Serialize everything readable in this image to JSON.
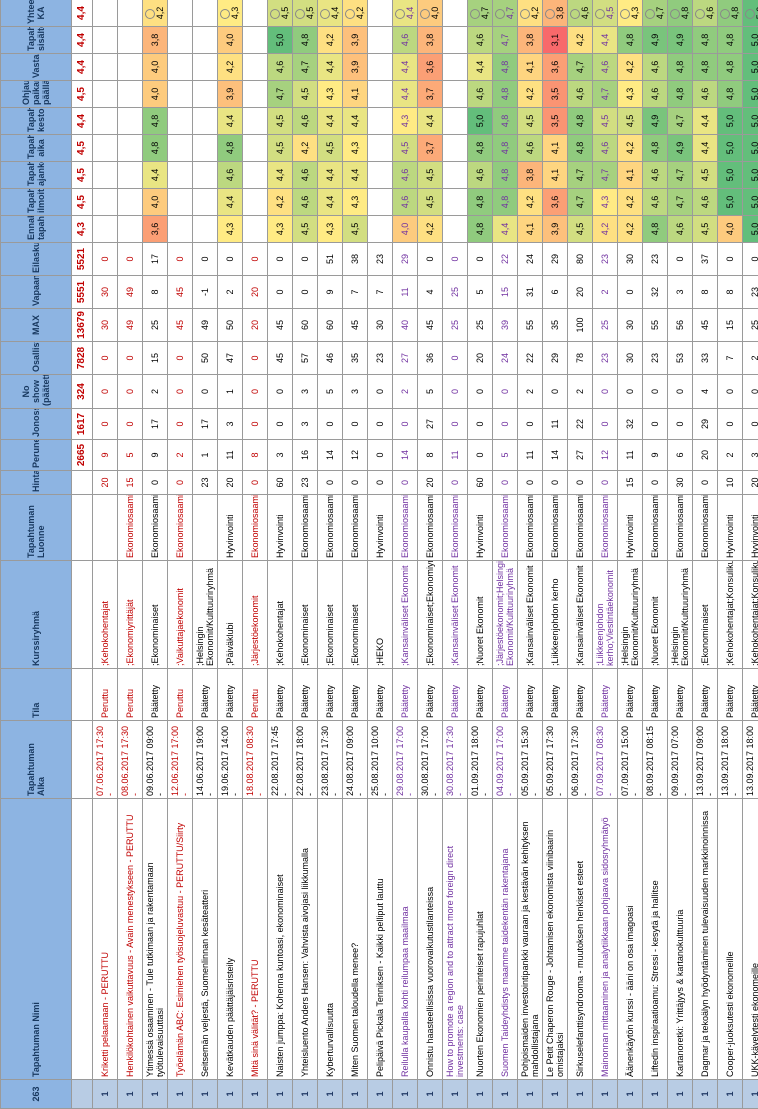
{
  "table": {
    "header": [
      "263",
      "Tapahtuman Nimi",
      "Tapahtuman Alka",
      "Tila",
      "Kurssiryhmä",
      "Tapahtuman Luonne",
      "Hinta",
      "Peruneet",
      "Jonossa",
      "No show (päätetty)",
      "Osallistunut",
      "MAX",
      "Vapaana",
      "Eilaskua",
      "Ennakkotieto tapahtumasta",
      "Tapahtuman ilmoittautuminen",
      "Tapahtuman ajankohta",
      "Tapahtuman aika",
      "Tapahtuman kesto",
      "Ohjaus paikan päällä",
      "Vastaanotto",
      "Tapahtuman sisältö",
      "Yhteensä KA"
    ],
    "totals": [
      null,
      null,
      null,
      null,
      null,
      null,
      null,
      2665,
      1617,
      324,
      7828,
      13679,
      5551,
      5521,
      "4,3",
      "4,5",
      "4,5",
      "4,5",
      "4,4",
      "4,5",
      "4,4",
      "4,4",
      "4,4"
    ],
    "totals_color": "#c00000",
    "rows": [
      {
        "color": "#c00000",
        "cells": [
          1,
          "Kriketti pelaamaan - PERUTTU",
          "07.06.2017 17:30 -",
          "Peruttu",
          ";Kehokohentajat",
          null,
          20,
          9,
          0,
          0,
          0,
          30,
          30,
          0,
          null,
          null,
          null,
          null,
          null,
          null,
          null,
          null,
          null
        ]
      },
      {
        "color": "#c00000",
        "cells": [
          1,
          "Henkilökohtainen vaikuttavuus - Avain menestykseen - PERUTTU",
          "08.06.2017 17:30 -",
          "Peruttu",
          ";Ekonomiyrittäjät",
          "Ekonomiosaaminen",
          15,
          5,
          0,
          0,
          0,
          49,
          49,
          0,
          null,
          null,
          null,
          null,
          null,
          null,
          null,
          null,
          null
        ]
      },
      {
        "cells": [
          1,
          "Ytimessä osaaminen - Tule tutkimaan ja rakentamaan työtulevaisuuttasi",
          "09.06.2017 09:00 -",
          "Päätetty",
          ";Ekonominaiset",
          "Ekonomiosaaminen",
          0,
          9,
          17,
          2,
          15,
          25,
          8,
          17,
          "3,6",
          "4,0",
          "4,4",
          "4,8",
          "4,8",
          "4,0",
          "4,0",
          "3,8",
          "4,2"
        ]
      },
      {
        "color": "#c00000",
        "cells": [
          1,
          "Työelämän ABC: Esimiehen työsuojeluvastuu - PERUTTU/Siirty",
          "12.06.2017 17:00 -",
          "Peruttu",
          ";Vaikuttajaekonomit",
          "Ekonomiosaaminen",
          0,
          2,
          0,
          0,
          0,
          45,
          45,
          0,
          null,
          null,
          null,
          null,
          null,
          null,
          null,
          null,
          null
        ]
      },
      {
        "cells": [
          1,
          "Seitsemän veljestä, Suomenlinnan kesäteatteri",
          "14.06.2017 19:00 -",
          "Päätetty",
          ";Helsingin Ekonomit/Kulttuuriryhmä",
          null,
          23,
          1,
          17,
          0,
          50,
          49,
          -1,
          0,
          null,
          null,
          null,
          null,
          null,
          null,
          null,
          null,
          null
        ]
      },
      {
        "cells": [
          1,
          "Kevätkauden päättäjäisristeily",
          "19.06.2017 14:00 -",
          "Päätetty",
          ";Päiväklubi",
          "Hyvinvointi",
          20,
          11,
          3,
          1,
          47,
          50,
          2,
          0,
          "4,3",
          "4,4",
          "4,6",
          "4,8",
          "4,4",
          "3,9",
          "4,2",
          "4,0",
          "4,3"
        ]
      },
      {
        "color": "#c00000",
        "cells": [
          1,
          "Mitä sinä välität? - PERUTTU",
          "18.08.2017 08:30 -",
          "Peruttu",
          ";Järjestöekonomit",
          "Ekonomiosaaminen",
          0,
          8,
          0,
          0,
          0,
          20,
          20,
          0,
          null,
          null,
          null,
          null,
          null,
          null,
          null,
          null,
          null
        ]
      },
      {
        "cells": [
          1,
          "Naisten jumppa: Kohenna kuntoasi, ekonominaiset",
          "22.08.2017 17:45 -",
          "Päätetty",
          ";Kehokohentajat",
          "Hyvinvointi",
          60,
          3,
          0,
          0,
          45,
          45,
          0,
          0,
          "4,3",
          "4,2",
          "4,4",
          "4,5",
          "4,5",
          "4,7",
          "4,6",
          "5,0",
          "4,5"
        ]
      },
      {
        "cells": [
          1,
          "Yhteisluento Anders Hansen: Vahvista aivojasi liikkumalla",
          "22.08.2017 18:00 -",
          "Päätetty",
          ";Ekonominaiset",
          "Ekonomiosaaminen",
          23,
          16,
          3,
          3,
          57,
          60,
          0,
          0,
          "4,5",
          "4,6",
          "4,6",
          "4,2",
          "4,6",
          "4,5",
          "4,7",
          "4,8",
          "4,5"
        ]
      },
      {
        "cells": [
          1,
          "Kyberturvallisuutta",
          "23.08.2017 17:30 -",
          "Päätetty",
          ";Ekonominaiset",
          "Ekonomiosaaminen",
          0,
          14,
          0,
          5,
          46,
          60,
          9,
          51,
          "4,3",
          "4,4",
          "4,4",
          "4,5",
          "4,4",
          "4,3",
          "4,4",
          "4,2",
          "4,4"
        ]
      },
      {
        "cells": [
          1,
          "Miten Suomen taloudella menee?",
          "24.08.2017 09:00 -",
          "Päätetty",
          ";Ekonominaiset",
          "Ekonomiosaaminen",
          0,
          12,
          0,
          3,
          35,
          45,
          7,
          38,
          "4,5",
          "4,3",
          "4,4",
          "4,3",
          "4,4",
          "4,1",
          "3,9",
          "3,9",
          "4,2"
        ]
      },
      {
        "cells": [
          1,
          "Pelipäivä Pickala Tenniksen - Kaikki pelliput lauttu",
          "25.08.2017 10:00 -",
          "Päätetty",
          ";HEKO",
          "Hyvinvointi",
          0,
          0,
          0,
          0,
          23,
          30,
          7,
          23,
          null,
          null,
          null,
          null,
          null,
          null,
          null,
          null,
          null
        ]
      },
      {
        "color": "#7030a0",
        "cells": [
          1,
          "Reilulla kaupalla kohti reilumpaa maailmaa",
          "29.08.2017 17:00 -",
          "Päätetty",
          ";Kansainväliset Ekonomit",
          "Ekonomiosaaminen",
          0,
          14,
          0,
          2,
          27,
          40,
          11,
          29,
          "4,0",
          "4,6",
          "4,6",
          "4,5",
          "4,3",
          "4,4",
          "4,4",
          "4,6",
          "4,4"
        ]
      },
      {
        "cells": [
          1,
          "Onnistu haasteellisissa vuorovaikutustilanteissa",
          "30.08.2017 17:00 -",
          "Päätetty",
          ";Ekonominaiset;Ekonomiyrittäjät",
          "Ekonomiosaaminen",
          20,
          8,
          27,
          5,
          36,
          45,
          4,
          0,
          "4,2",
          "4,5",
          "4,5",
          "3,7",
          "4,4",
          "3,7",
          "3,6",
          "3,8",
          "4,0"
        ]
      },
      {
        "color": "#7030a0",
        "cells": [
          1,
          "How to promote a region and to attract more foreign direct investments: case",
          "30.08.2017 17:30 -",
          "Päätetty",
          ";Kansainväliset Ekonomit",
          "Ekonomiosaaminen",
          0,
          11,
          0,
          0,
          0,
          25,
          25,
          0,
          null,
          null,
          null,
          null,
          null,
          null,
          null,
          null,
          null
        ]
      },
      {
        "cells": [
          1,
          "Nuorten Ekonomien perinteiset rapujuhlat",
          "01.09.2017 18:00 -",
          "Päätetty",
          ";Nuoret Ekonomit",
          "Hyvinvointi",
          60,
          0,
          0,
          0,
          20,
          25,
          5,
          0,
          "4,8",
          "4,8",
          "4,6",
          "4,8",
          "5,0",
          "4,6",
          "4,4",
          "4,6",
          "4,7"
        ]
      },
      {
        "color": "#7030a0",
        "cells": [
          1,
          "Suomen Taideyhdistys maamme taidekentän rakentajana",
          "04.09.2017 17:00 -",
          "Päätetty",
          ";Järjestöekonomit;Helsingin Ekonomit/Kulttuuriryhmä",
          "Ekonomiosaaminen",
          0,
          5,
          0,
          0,
          24,
          39,
          15,
          22,
          "4,4",
          "4,8",
          "4,8",
          "4,8",
          "4,8",
          "4,8",
          "4,8",
          "4,7",
          "4,7"
        ]
      },
      {
        "cells": [
          1,
          "Pohjoismaiden investointipankki vauraan ja kestävän kehityksen mahdollistajana",
          "05.09.2017 15:30 -",
          "Päätetty",
          ";Kansainväliset Ekonomit",
          "Ekonomiosaaminen",
          0,
          11,
          0,
          2,
          22,
          55,
          31,
          24,
          "4,1",
          "4,2",
          "3,8",
          "4,6",
          "4,5",
          "4,2",
          "4,1",
          "3,8",
          "4,2"
        ]
      },
      {
        "cells": [
          1,
          "Le Petit Chaperon Rouge - Johtamisen ekonomista viinibaarin omistajaksi",
          "05.09.2017 17:30 -",
          "Päätetty",
          ";Liikkeenjohdon kerho",
          "Ekonomiosaaminen",
          0,
          14,
          11,
          0,
          29,
          35,
          6,
          29,
          "3,9",
          "3,6",
          "4,1",
          "4,1",
          "3,5",
          "3,5",
          "3,6",
          "3,1",
          "3,8"
        ]
      },
      {
        "cells": [
          1,
          "Sirkuselefanttisyndrooma - muutoksen henkiset esteet",
          "06.09.2017 17:30 -",
          "Päätetty",
          ";Kansainväliset Ekonomit",
          "Ekonomiosaaminen",
          0,
          27,
          22,
          2,
          78,
          100,
          20,
          80,
          "4,5",
          "4,7",
          "4,7",
          "4,8",
          "4,8",
          "4,6",
          "4,7",
          "4,2",
          "4,6"
        ]
      },
      {
        "color": "#7030a0",
        "cells": [
          1,
          "Mainonnan mittaaminen ja analytiikkaan pohjaava sidosryhmätyö",
          "07.09.2017 08:30 -",
          "Päätetty",
          ";Liikkeenjohdon kerho;Viestintäekonomit",
          "Ekonomiosaaminen",
          0,
          12,
          0,
          0,
          23,
          25,
          2,
          23,
          "4,2",
          "4,3",
          "4,7",
          "4,6",
          "4,5",
          "4,7",
          "4,6",
          "4,4",
          "4,5"
        ]
      },
      {
        "cells": [
          1,
          "Äänenkäytön kurssi - ääni on osa imagoasi",
          "07.09.2017 15:00 -",
          "Päätetty",
          ";Helsingin Ekonomit/Kulttuuriryhmä",
          "Hyvinvointi",
          15,
          11,
          32,
          0,
          30,
          30,
          0,
          30,
          "4,2",
          "4,2",
          "4,1",
          "4,2",
          "4,5",
          "4,3",
          "4,2",
          "4,8",
          "4,3"
        ]
      },
      {
        "cells": [
          1,
          "Liftedin inspiraatioamu: Stressi - kesytä ja hallitse",
          "08.09.2017 08:15 -",
          "Päätetty",
          ";Nuoret Ekonomit",
          "Ekonomiosaaminen",
          0,
          9,
          0,
          0,
          23,
          55,
          32,
          23,
          "4,8",
          "4,6",
          "4,6",
          "4,8",
          "4,9",
          "4,6",
          "4,6",
          "4,9",
          "4,7"
        ]
      },
      {
        "cells": [
          1,
          "Kartanoretki: Yrittäjyys & kartanokulttuuria",
          "09.09.2017 07:00 -",
          "Päätetty",
          ";Helsingin Ekonomit/Kulttuuriryhmä",
          "Ekonomiosaaminen",
          30,
          6,
          0,
          0,
          53,
          56,
          3,
          0,
          "4,6",
          "4,7",
          "4,7",
          "4,9",
          "4,7",
          "4,8",
          "4,8",
          "4,9",
          "4,8"
        ]
      },
      {
        "cells": [
          1,
          "Dagmar ja tekoälyn hyödyntäminen tulevaisuuden markkinoinnissa",
          "13.09.2017 09:00 -",
          "Päätetty",
          ";Ekonominaiset",
          "Ekonomiosaaminen",
          0,
          20,
          29,
          4,
          33,
          45,
          8,
          37,
          "4,5",
          "4,6",
          "4,5",
          "4,4",
          "4,4",
          "4,6",
          "4,8",
          "4,8",
          "4,6"
        ]
      },
      {
        "cells": [
          1,
          "Cooper-juoksutesti ekonomeille",
          "13.09.2017 18:00 -",
          "Päätetty",
          ";Kehokohentajat;Konsulikubi",
          "Hyvinvointi",
          10,
          2,
          0,
          0,
          7,
          15,
          8,
          0,
          "4,0",
          "5,0",
          "5,0",
          "5,0",
          "5,0",
          "4,8",
          "4,8",
          "4,8",
          "4,8"
        ]
      },
      {
        "cells": [
          1,
          "UKK-kävelytesti ekonomeille",
          "13.09.2017 18:00 -",
          "Päätetty",
          ";Kehokohentajat;Konsulikubi",
          "Hyvinvointi",
          20,
          3,
          0,
          0,
          2,
          25,
          23,
          0,
          "5,0",
          "5,0",
          "5,0",
          "5,0",
          "5,0",
          "5,0",
          "5,0",
          "5,0",
          "5,0"
        ]
      }
    ]
  }
}
